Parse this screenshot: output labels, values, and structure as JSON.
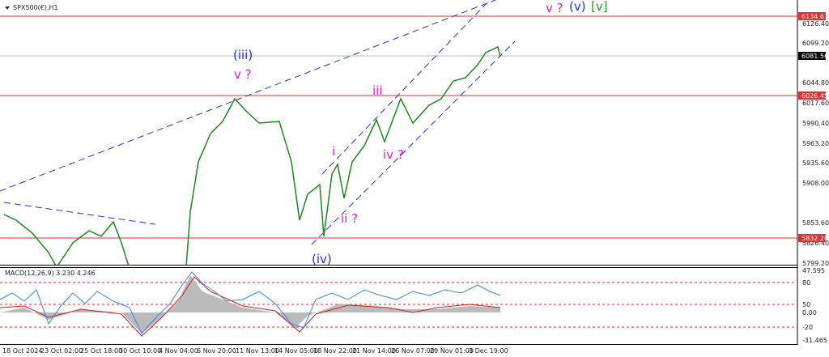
{
  "header": {
    "title": "SPX500(€),H1"
  },
  "price_axis": {
    "labels": [
      "6126.40",
      "6099.20",
      "6044.80",
      "6017.60",
      "5990.40",
      "5963.20",
      "5935.60",
      "5908.00",
      "5853.60",
      "5826.40",
      "5799.20"
    ]
  },
  "price_tags": [
    "6134.61",
    "6081.56",
    "6026.45",
    "5832.28"
  ],
  "wave_labels": [
    "(iii)",
    "v ?",
    "iii",
    "i",
    "iv ?",
    "ii ?",
    "(iv)",
    "v ?",
    "(v)",
    "[v]"
  ],
  "macd": {
    "label": "MACD(12,26,9) 3.230 4.246",
    "axis_labels": [
      "47.595",
      "80",
      "50",
      "0.00",
      "-20",
      "-31.465"
    ]
  },
  "time_axis": {
    "labels": [
      "18 Oct 2024",
      "23 Oct 02:00",
      "25 Oct 18:00",
      "30 Oct 10:00",
      "4 Nov 04:00",
      "6 Nov 20:00",
      "11 Nov 13:00",
      "14 Nov 05:00",
      "18 Nov 22:00",
      "21 Nov 14:00",
      "26 Nov 07:00",
      "29 Nov 01:00",
      "3 Dec 19:00"
    ]
  }
}
